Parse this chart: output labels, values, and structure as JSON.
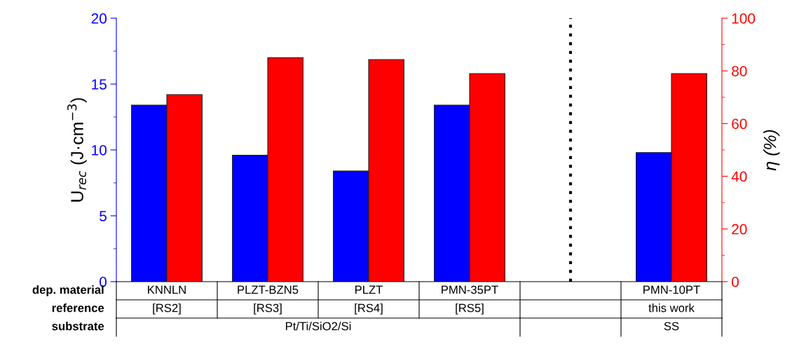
{
  "chart_data": {
    "type": "bar",
    "categories": [
      "KNNLN",
      "PLZT-BZN5",
      "PLZT",
      "PMN-35PT",
      null,
      "PMN-10PT"
    ],
    "xlabel": "dep. material",
    "ylabel": "U$_{rec}$ (J·cm$^{−3}$)",
    "y2label": "η (%)",
    "series": [
      {
        "color": "#0000ff",
        "values": [
          13.4,
          9.6,
          8.4,
          13.4,
          null,
          9.8
        ]
      },
      {
        "color": "#ff0000",
        "axis": "y2",
        "values": [
          71,
          85,
          84.3,
          79,
          null,
          79
        ]
      }
    ],
    "ylim": [
      0,
      20
    ],
    "yticks": [
      0,
      5,
      10,
      15,
      20
    ],
    "y2lim": [
      0,
      100
    ],
    "y2ticks": [
      0,
      20,
      40,
      60,
      80,
      100
    ],
    "annotations": [
      "reference",
      "[RS2]",
      "[RS3]",
      "[RS4]",
      "[RS5]",
      "this work",
      "substrate",
      "Pt/Ti/SiO2/Si",
      "SS"
    ]
  }
}
